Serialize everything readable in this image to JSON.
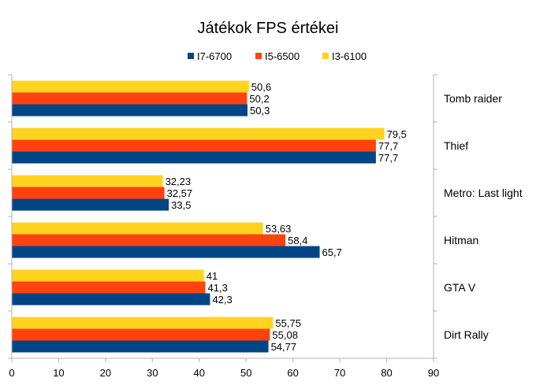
{
  "chart_data": {
    "type": "bar",
    "orientation": "horizontal",
    "title": "Játékok FPS értékei",
    "categories": [
      "Tomb raider",
      "Thief",
      "Metro: Last light",
      "Hitman",
      "GTA V",
      "Dirt Rally"
    ],
    "series": [
      {
        "name": "I7-6700",
        "color": "#004586",
        "values": [
          50.3,
          77.7,
          33.5,
          65.7,
          42.3,
          54.77
        ],
        "labels": [
          "50,3",
          "77,7",
          "33,5",
          "65,7",
          "42,3",
          "54,77"
        ]
      },
      {
        "name": "I5-6500",
        "color": "#ff420e",
        "values": [
          50.2,
          77.7,
          32.57,
          58.4,
          41.3,
          55.08
        ],
        "labels": [
          "50,2",
          "77,7",
          "32,57",
          "58,4",
          "41,3",
          "55,08"
        ]
      },
      {
        "name": "I3-6100",
        "color": "#ffd320",
        "values": [
          50.6,
          79.5,
          32.23,
          53.63,
          41,
          55.75
        ],
        "labels": [
          "50,6",
          "79,5",
          "32,23",
          "53,63",
          "41",
          "55,75"
        ]
      }
    ],
    "xlim": [
      0,
      90
    ],
    "xticks": [
      0,
      10,
      20,
      30,
      40,
      50,
      60,
      70,
      80,
      90
    ],
    "legend": "top",
    "category_axis": "right",
    "grid": false
  }
}
